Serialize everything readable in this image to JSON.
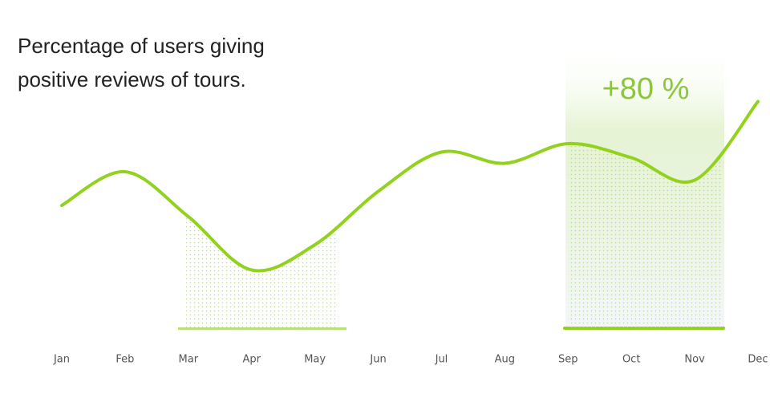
{
  "chart_data": {
    "type": "line",
    "title": "Percentage of users giving positive reviews of tours.",
    "annotation": "+80 %",
    "categories": [
      "Jan",
      "Feb",
      "Mar",
      "Apr",
      "May",
      "Jun",
      "Jul",
      "Aug",
      "Sep",
      "Oct",
      "Nov",
      "Dec"
    ],
    "values": [
      44,
      56,
      40,
      21,
      30,
      49,
      63,
      59,
      66,
      61,
      53,
      81
    ],
    "color": "#92d21e",
    "ylim": [
      0,
      100
    ]
  }
}
